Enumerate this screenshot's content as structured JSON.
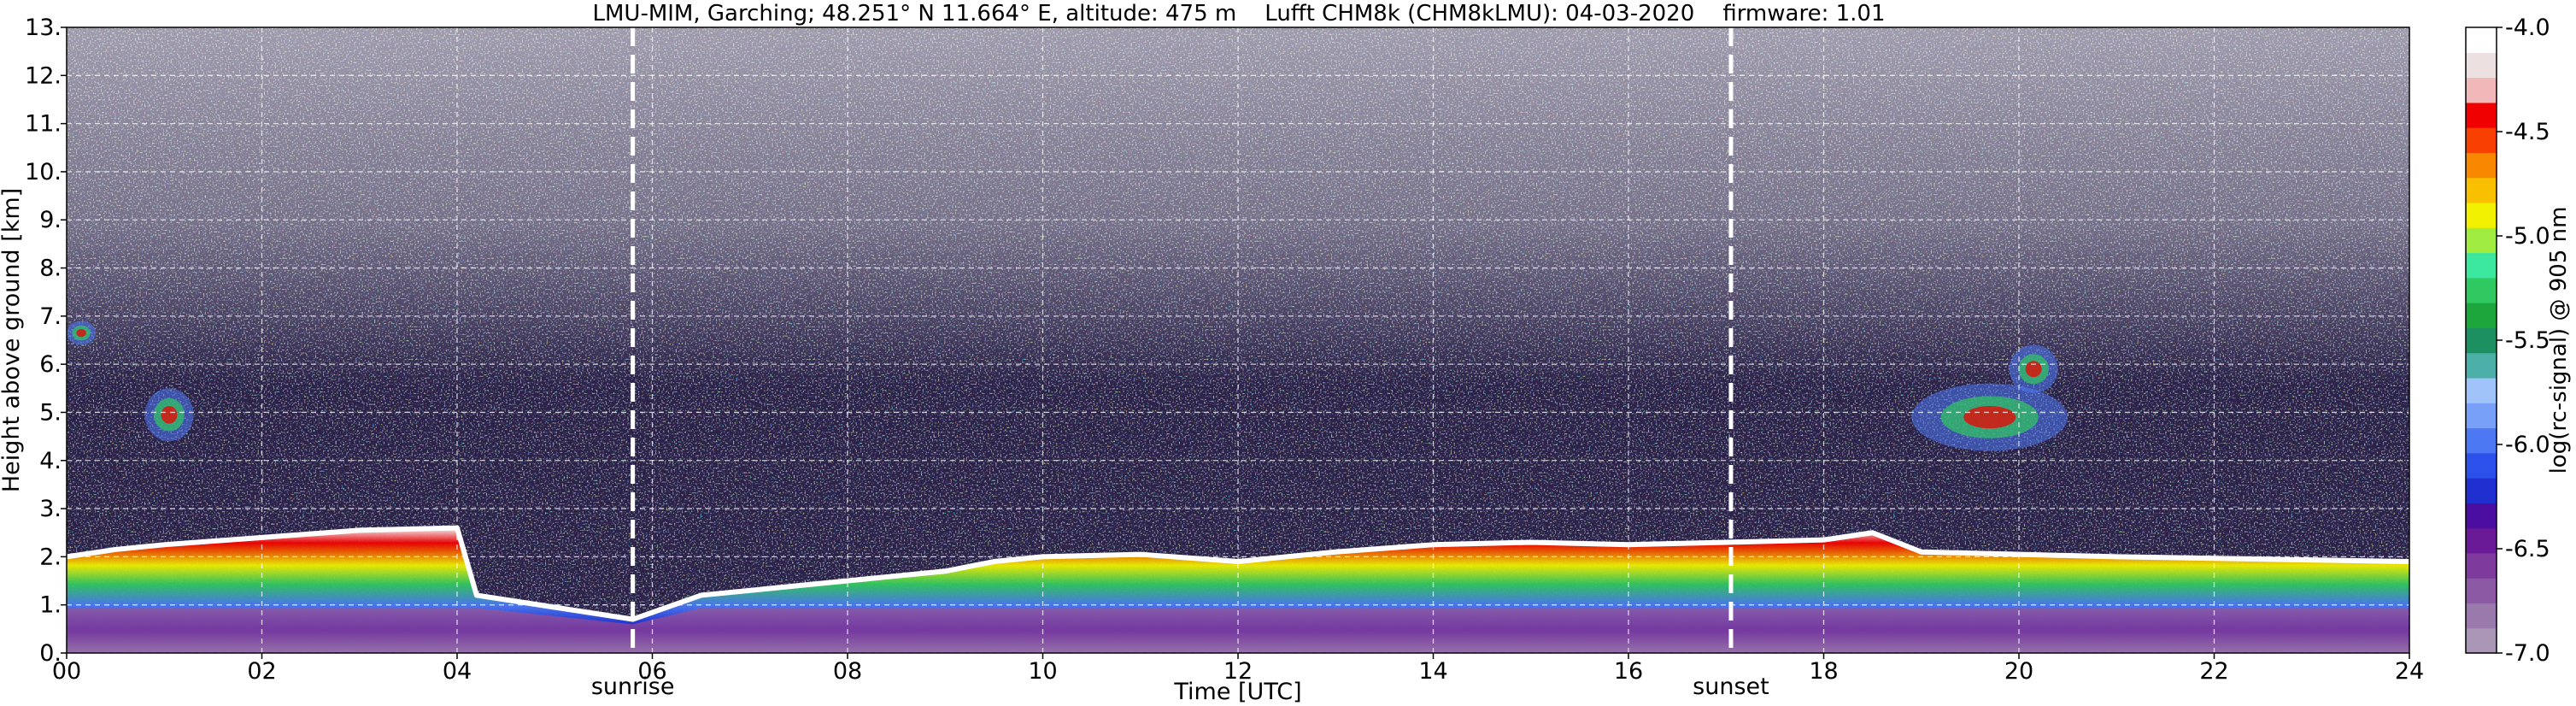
{
  "chart_data": {
    "type": "heatmap",
    "title": "LMU-MIM, Garching; 48.251° N 11.664° E, altitude: 475 m    Lufft CHM8k (CHM8kLMU): 04-03-2020    firmware: 1.01",
    "xlabel": "Time [UTC]",
    "ylabel": "Height above ground [km]",
    "xlim": [
      0,
      24
    ],
    "ylim": [
      0,
      13
    ],
    "x_ticks": [
      "00",
      "02",
      "04",
      "06",
      "08",
      "10",
      "12",
      "14",
      "16",
      "18",
      "20",
      "22",
      "24"
    ],
    "y_ticks": [
      "0.",
      "1.",
      "2.",
      "3.",
      "4.",
      "5.",
      "6.",
      "7.",
      "8.",
      "9.",
      "10.",
      "11.",
      "12.",
      "13."
    ],
    "grid": true,
    "colorbar": {
      "label": "log(rc-signal) @ 905 nm",
      "range": [
        -7.0,
        -4.0
      ],
      "ticks": [
        "-7.0",
        "-6.5",
        "-6.0",
        "-5.5",
        "-5.0",
        "-4.5",
        "-4.0"
      ],
      "colors": [
        "#a896b4",
        "#9a7aac",
        "#8c5aa4",
        "#7e3a9c",
        "#6a1a96",
        "#4a0ea0",
        "#2030d0",
        "#2c50ea",
        "#4c78f4",
        "#78a0f8",
        "#a0c4fa",
        "#4cb0a8",
        "#1c9060",
        "#1ca63c",
        "#30c860",
        "#3ce8a0",
        "#a0ec40",
        "#f0f000",
        "#f8c000",
        "#f88800",
        "#f84000",
        "#f00000",
        "#f0b8b8",
        "#ece0e0",
        "#ffffff"
      ]
    },
    "annotations": [
      {
        "label": "sunrise",
        "x": 5.8
      },
      {
        "label": "sunset",
        "x": 17.05
      }
    ],
    "features": {
      "boundary_layer_top_km": [
        {
          "x": 0,
          "y": 2.0
        },
        {
          "x": 0.5,
          "y": 2.15
        },
        {
          "x": 1,
          "y": 2.25
        },
        {
          "x": 2,
          "y": 2.4
        },
        {
          "x": 3,
          "y": 2.55
        },
        {
          "x": 4,
          "y": 2.6
        },
        {
          "x": 4.2,
          "y": 1.2
        },
        {
          "x": 5.8,
          "y": 0.7
        },
        {
          "x": 6.5,
          "y": 1.2
        },
        {
          "x": 7.5,
          "y": 1.4
        },
        {
          "x": 8,
          "y": 1.5
        },
        {
          "x": 9,
          "y": 1.7
        },
        {
          "x": 9.5,
          "y": 1.9
        },
        {
          "x": 10,
          "y": 2.0
        },
        {
          "x": 11,
          "y": 2.05
        },
        {
          "x": 12,
          "y": 1.9
        },
        {
          "x": 13,
          "y": 2.1
        },
        {
          "x": 14,
          "y": 2.25
        },
        {
          "x": 15,
          "y": 2.3
        },
        {
          "x": 16,
          "y": 2.25
        },
        {
          "x": 17,
          "y": 2.3
        },
        {
          "x": 18,
          "y": 2.35
        },
        {
          "x": 18.5,
          "y": 2.5
        },
        {
          "x": 19,
          "y": 2.1
        },
        {
          "x": 21,
          "y": 2.0
        },
        {
          "x": 24,
          "y": 1.9
        }
      ],
      "elevated_aerosol_layers_km": [
        {
          "x0": 0.0,
          "x1": 0.3,
          "y0": 6.4,
          "y1": 6.9
        },
        {
          "x0": 0.8,
          "x1": 1.3,
          "y0": 4.4,
          "y1": 5.5
        },
        {
          "x0": 18.9,
          "x1": 20.5,
          "y0": 4.2,
          "y1": 5.6
        },
        {
          "x0": 19.9,
          "x1": 20.4,
          "y0": 5.4,
          "y1": 6.4
        }
      ]
    }
  }
}
